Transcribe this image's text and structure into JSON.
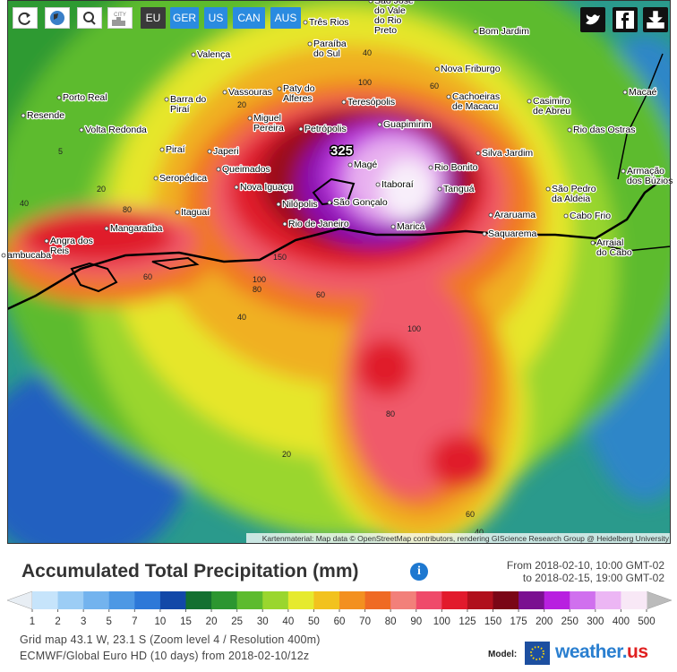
{
  "toolbar": {
    "city_icon": "CITY",
    "buttons": [
      "EU",
      "GER",
      "US",
      "CAN",
      "AUS"
    ]
  },
  "map": {
    "cities": [
      [
        "São José",
        "do Vale",
        "do Rio",
        "Preto"
      ],
      [
        "Três Rios"
      ],
      [
        "Bom Jardim"
      ],
      [
        "Paraíba",
        "do Sul"
      ],
      [
        "Valença"
      ],
      [
        "Nova Friburgo"
      ],
      [
        "Porto Real"
      ],
      [
        "Vassouras"
      ],
      [
        "Paty do",
        "Alferes"
      ],
      [
        "Teresópolis"
      ],
      [
        "Cachoeiras",
        "de Macacu"
      ],
      [
        "Casimiro",
        "de Abreu"
      ],
      [
        "Macaé"
      ],
      [
        "Resende"
      ],
      [
        "Barra do",
        "Piraí"
      ],
      [
        "Miguel",
        "Pereira"
      ],
      [
        "Guapimirim"
      ],
      [
        "Volta Redonda"
      ],
      [
        "Petrópolis"
      ],
      [
        "Rio das Ostras"
      ],
      [
        "Piraí"
      ],
      [
        "Japeri"
      ],
      [
        "Silva Jardim"
      ],
      [
        "Magé"
      ],
      [
        "Queimados"
      ],
      [
        "Rio Bonito"
      ],
      [
        "Armação",
        "dos Búzios"
      ],
      [
        "Seropédica"
      ],
      [
        "Itaboraí"
      ],
      [
        "Nova Iguaçu"
      ],
      [
        "Tanguá"
      ],
      [
        "São Pedro",
        "da Aldeia"
      ],
      [
        "Itaguaí"
      ],
      [
        "Nilópolis"
      ],
      [
        "São Gonçalo"
      ],
      [
        "Cabo Frio"
      ],
      [
        "Araruama"
      ],
      [
        "Rio de Janeiro"
      ],
      [
        "Mangaratiba"
      ],
      [
        "Maricá"
      ],
      [
        "Saquarema"
      ],
      [
        "Angra dos",
        "Reis"
      ],
      [
        "Arraial",
        "do Cabo"
      ],
      [
        "ambucaba"
      ]
    ],
    "contours": [
      "40",
      "100",
      "60",
      "20",
      "5",
      "20",
      "40",
      "80",
      "60",
      "100",
      "80",
      "150",
      "40",
      "60",
      "100",
      "80",
      "20",
      "60",
      "40"
    ],
    "peak": "325",
    "attribution": "Kartenmaterial: Map data © OpenStreetMap contributors, rendering GIScience Research Group @ Heidelberg University"
  },
  "title": "Accumulated Total Precipitation (mm)",
  "period": {
    "from": "From 2018-02-10, 10:00 GMT-02",
    "to": "to 2018-02-15, 19:00 GMT-02"
  },
  "legend": [
    1,
    2,
    3,
    5,
    7,
    10,
    15,
    20,
    25,
    30,
    40,
    50,
    60,
    70,
    80,
    90,
    100,
    125,
    150,
    175,
    200,
    250,
    300,
    400,
    500
  ],
  "footer": {
    "grid": "Grid map 43.1 W, 23.1 S (Zoom level 4 / Resolution 400m)",
    "model_run": "ECMWF/Global Euro HD (10 days) from 2018-02-10/12z",
    "model_label": "Model:",
    "brand": "weather.",
    "brand_tld": "us"
  }
}
